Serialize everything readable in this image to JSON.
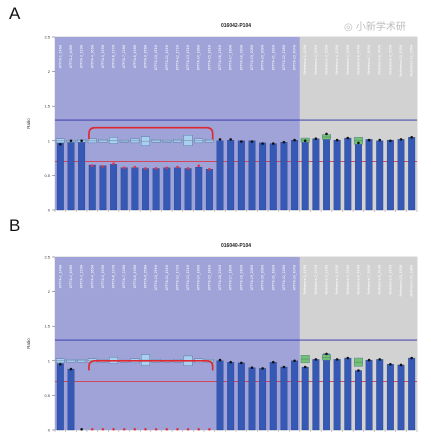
{
  "panels": [
    "A",
    "B"
  ],
  "watermark": {
    "glyphs": "◎ 小新学术研",
    "color": "#bdbdbd"
  },
  "colors": {
    "bar": "#3559b5",
    "bar_edge": "#1f3b86",
    "region_a": "#9fa3d8",
    "region_b": "#d2d2d2",
    "ref_blue": "#2b2fa8",
    "ref_red": "#d9384b",
    "bracket": "#e0262e",
    "box_blue": "#a9d0ee",
    "box_green": "#72c272",
    "dot": "#111111"
  },
  "chart_data": [
    {
      "type": "bar",
      "title": "016042-P104",
      "ylabel": "Ratio",
      "ylim": [
        0,
        2.5
      ],
      "yticks": [
        "0",
        "0.5",
        "1",
        "1.5",
        "2",
        "2.5"
      ],
      "grid": false,
      "categories": [
        "ATP7A-1_146H",
        "ATP7A-2_408H",
        "ATP7A-3_229H",
        "ATP7A-4_365H",
        "ATP7A-5_255H",
        "ATP7A-6_237H",
        "ATP7A-7_226H",
        "ATP7A-8_438H",
        "ATP7A-9_356H",
        "ATP7A-10_291H",
        "ATP7A-11_151H",
        "ATP7A-12_172H",
        "ATP7A-13_151H",
        "ATP7A-14_196H",
        "ATP7A-15_161H",
        "ATP7A-16_234H",
        "ATP7A-17_160H",
        "ATP7A-18_290H",
        "ATP7A-19_208H",
        "ATP7A-20_309H",
        "ATP7A-21_162H",
        "ATP7A-22_226H",
        "ATP7A-23_407H",
        "Reference-1_419H",
        "Reference-2_231H",
        "Reference-3_229H",
        "Reference-4_135H",
        "Reference-5_328H",
        "Reference-6_445H",
        "Reference-7_385H",
        "Reference-8_343H",
        "Reference-9_355H",
        "Reference-10_159H",
        "Reference-11_336H"
      ],
      "values": [
        0.98,
        0.97,
        0.98,
        0.65,
        0.64,
        0.66,
        0.61,
        0.61,
        0.6,
        0.6,
        0.61,
        0.61,
        0.6,
        0.62,
        0.59,
        1.0,
        1.01,
        1.0,
        1.0,
        0.97,
        0.96,
        0.98,
        1.01,
        1.0,
        1.03,
        1.07,
        1.01,
        1.04,
        0.98,
        1.02,
        1.0,
        1.01,
        1.02,
        1.05
      ],
      "dots": [
        0.95,
        1.0,
        1.0,
        0.64,
        0.63,
        0.67,
        0.61,
        0.62,
        0.6,
        0.6,
        0.61,
        0.62,
        0.6,
        0.64,
        0.59,
        1.02,
        1.02,
        0.99,
        0.99,
        0.96,
        0.96,
        0.98,
        1.01,
        1.0,
        1.03,
        1.1,
        1.01,
        1.04,
        0.97,
        1.01,
        1.01,
        1.0,
        1.02,
        1.05
      ],
      "boxes": [
        {
          "i": 0,
          "c": "blue",
          "lo": 0.97,
          "hi": 1.03
        },
        {
          "i": 1,
          "c": "blue",
          "lo": 0.98,
          "hi": 1.01
        },
        {
          "i": 2,
          "c": "blue",
          "lo": 0.98,
          "hi": 1.02
        },
        {
          "i": 3,
          "c": "blue",
          "lo": 0.97,
          "hi": 1.03
        },
        {
          "i": 4,
          "c": "blue",
          "lo": 0.98,
          "hi": 1.02
        },
        {
          "i": 5,
          "c": "blue",
          "lo": 0.96,
          "hi": 1.05
        },
        {
          "i": 6,
          "c": "blue",
          "lo": 0.98,
          "hi": 1.01
        },
        {
          "i": 7,
          "c": "blue",
          "lo": 0.97,
          "hi": 1.03
        },
        {
          "i": 8,
          "c": "blue",
          "lo": 0.93,
          "hi": 1.06
        },
        {
          "i": 9,
          "c": "blue",
          "lo": 0.98,
          "hi": 1.02
        },
        {
          "i": 10,
          "c": "blue",
          "lo": 0.98,
          "hi": 1.01
        },
        {
          "i": 11,
          "c": "blue",
          "lo": 0.98,
          "hi": 1.02
        },
        {
          "i": 12,
          "c": "blue",
          "lo": 0.93,
          "hi": 1.08
        },
        {
          "i": 13,
          "c": "blue",
          "lo": 0.97,
          "hi": 1.03
        },
        {
          "i": 14,
          "c": "blue",
          "lo": 0.98,
          "hi": 1.02
        },
        {
          "i": 23,
          "c": "green",
          "lo": 0.98,
          "hi": 1.04
        },
        {
          "i": 25,
          "c": "green",
          "lo": 1.02,
          "hi": 1.09
        },
        {
          "i": 28,
          "c": "green",
          "lo": 0.95,
          "hi": 1.05
        }
      ],
      "regions": [
        {
          "from": 0,
          "to": 22,
          "color": "a"
        },
        {
          "from": 23,
          "to": 33,
          "color": "b"
        }
      ],
      "ref_lines": [
        {
          "y": 1.3,
          "color": "blue"
        },
        {
          "y": 0.7,
          "color": "red"
        }
      ],
      "bracket": {
        "from": 3,
        "to": 14,
        "y": 1.19,
        "depth": 0.16
      }
    },
    {
      "type": "bar",
      "title": "016040-P104",
      "ylabel": "Ratio",
      "ylim": [
        0,
        2.5
      ],
      "yticks": [
        "0",
        "0.5",
        "1",
        "1.5",
        "2",
        "2.5"
      ],
      "grid": false,
      "categories": [
        "ATP7A-1_146H",
        "ATP7A-2_408H",
        "ATP7A-3_229H",
        "ATP7A-4_365H",
        "ATP7A-5_255H",
        "ATP7A-6_237H",
        "ATP7A-7_226H",
        "ATP7A-8_438H",
        "ATP7A-9_356H",
        "ATP7A-10_291H",
        "ATP7A-11_151H",
        "ATP7A-12_172H",
        "ATP7A-13_151H",
        "ATP7A-14_196H",
        "ATP7A-15_161H",
        "ATP7A-16_234H",
        "ATP7A-17_160H",
        "ATP7A-18_290H",
        "ATP7A-19_208H",
        "ATP7A-20_309H",
        "ATP7A-21_162H",
        "ATP7A-22_226H",
        "ATP7A-23_407H",
        "Reference-1_419H",
        "Reference-2_231H",
        "Reference-3_229H",
        "Reference-4_135H",
        "Reference-5_328H",
        "Reference-6_445H",
        "Reference-7_385H",
        "Reference-8_343H",
        "Reference-9_355H",
        "Reference-10_159H",
        "Reference-11_336H"
      ],
      "values": [
        0.96,
        0.88,
        0.0,
        0.0,
        0.0,
        0.0,
        0.0,
        0.0,
        0.0,
        0.0,
        0.0,
        0.0,
        0.0,
        0.0,
        0.0,
        1.0,
        0.98,
        0.97,
        0.9,
        0.89,
        0.98,
        0.91,
        1.0,
        0.91,
        1.02,
        1.1,
        1.02,
        1.04,
        0.86,
        1.01,
        1.02,
        0.95,
        0.94,
        1.04
      ],
      "dots": [
        0.95,
        0.88,
        0.01,
        0.01,
        0.01,
        0.01,
        0.01,
        0.01,
        0.01,
        0.01,
        0.01,
        0.01,
        0.01,
        0.01,
        0.01,
        1.01,
        0.98,
        0.97,
        0.9,
        0.89,
        0.98,
        0.91,
        1.0,
        0.91,
        1.02,
        1.1,
        1.02,
        1.04,
        0.86,
        1.01,
        1.02,
        0.95,
        0.94,
        1.04
      ],
      "boxes": [
        {
          "i": 0,
          "c": "blue",
          "lo": 0.97,
          "hi": 1.03
        },
        {
          "i": 1,
          "c": "blue",
          "lo": 0.98,
          "hi": 1.02
        },
        {
          "i": 2,
          "c": "blue",
          "lo": 0.98,
          "hi": 1.02
        },
        {
          "i": 3,
          "c": "blue",
          "lo": 0.97,
          "hi": 1.03
        },
        {
          "i": 4,
          "c": "blue",
          "lo": 0.98,
          "hi": 1.02
        },
        {
          "i": 5,
          "c": "blue",
          "lo": 0.96,
          "hi": 1.05
        },
        {
          "i": 6,
          "c": "blue",
          "lo": 0.98,
          "hi": 1.01
        },
        {
          "i": 7,
          "c": "blue",
          "lo": 0.97,
          "hi": 1.03
        },
        {
          "i": 8,
          "c": "blue",
          "lo": 0.93,
          "hi": 1.09
        },
        {
          "i": 9,
          "c": "blue",
          "lo": 0.98,
          "hi": 1.02
        },
        {
          "i": 10,
          "c": "blue",
          "lo": 0.98,
          "hi": 1.01
        },
        {
          "i": 11,
          "c": "blue",
          "lo": 0.98,
          "hi": 1.02
        },
        {
          "i": 12,
          "c": "blue",
          "lo": 0.93,
          "hi": 1.07
        },
        {
          "i": 13,
          "c": "blue",
          "lo": 0.97,
          "hi": 1.03
        },
        {
          "i": 14,
          "c": "blue",
          "lo": 0.98,
          "hi": 1.02
        },
        {
          "i": 23,
          "c": "green",
          "lo": 0.97,
          "hi": 1.08
        },
        {
          "i": 25,
          "c": "green",
          "lo": 1.01,
          "hi": 1.09
        },
        {
          "i": 28,
          "c": "green",
          "lo": 0.92,
          "hi": 1.04
        }
      ],
      "regions": [
        {
          "from": 0,
          "to": 22,
          "color": "a"
        },
        {
          "from": 23,
          "to": 33,
          "color": "b"
        }
      ],
      "ref_lines": [
        {
          "y": 1.3,
          "color": "blue"
        },
        {
          "y": 0.7,
          "color": "red"
        }
      ],
      "bracket": {
        "from": 3,
        "to": 14,
        "y": 1.0,
        "depth": 0.13
      }
    }
  ]
}
